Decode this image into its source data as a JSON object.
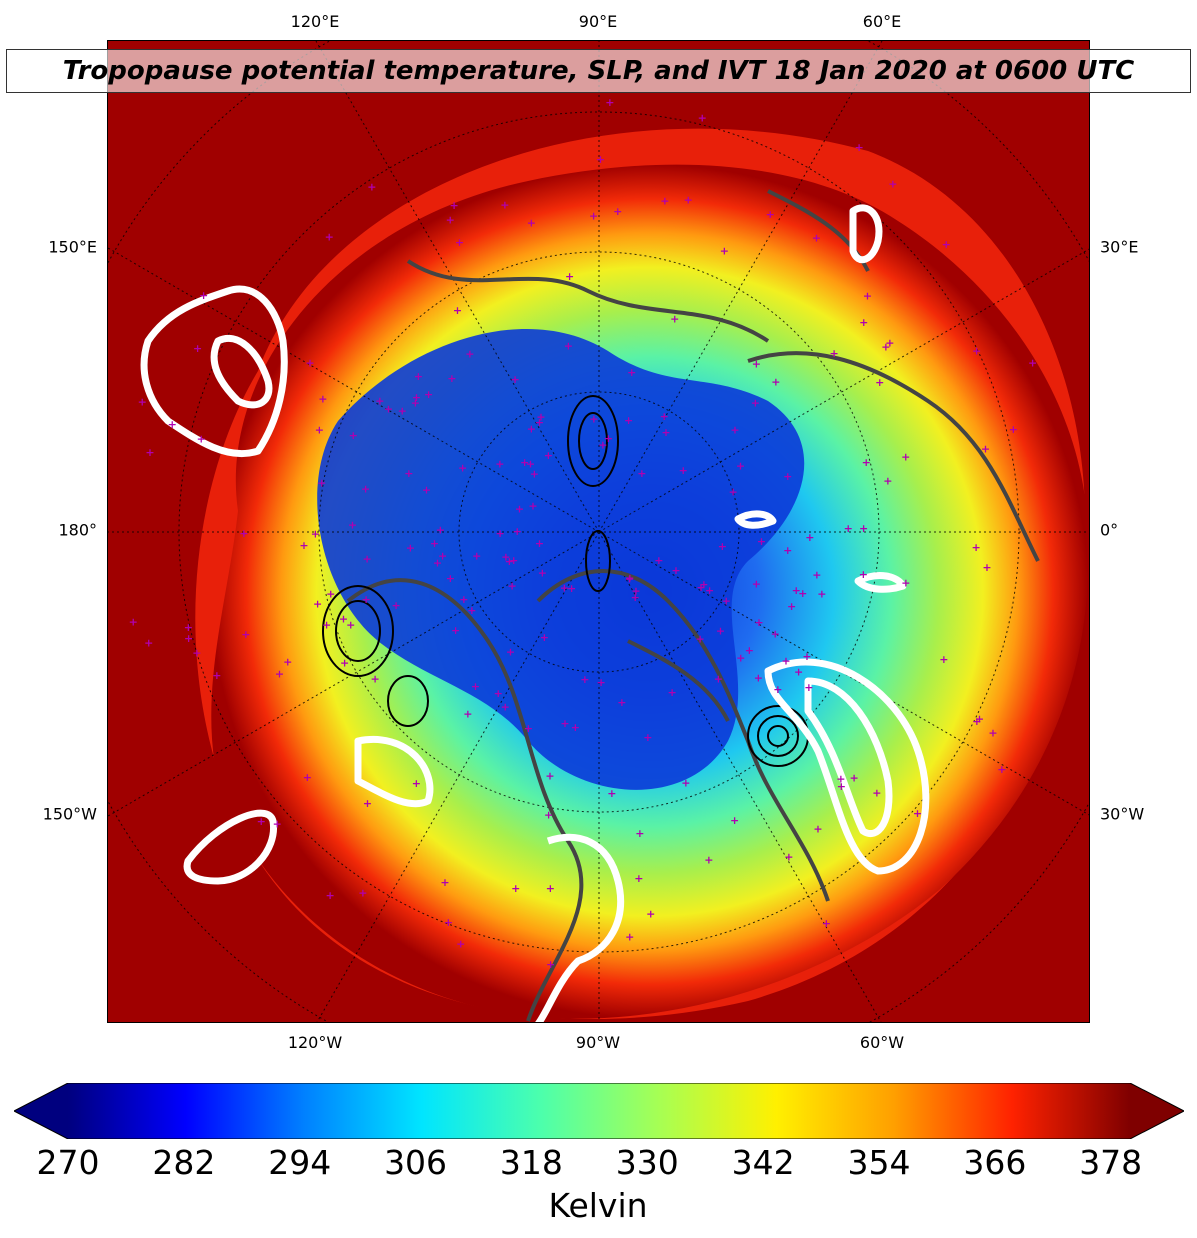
{
  "title": "Tropopause potential temperature, SLP, and IVT 18 Jan 2020 at 0600 UTC",
  "map": {
    "background_color": "#a00000",
    "coastline_color": "#444444",
    "ivt_contour_color": "#ffffff",
    "slp_contour_color": "#000000",
    "marker_color": "#b000b0",
    "longitude_labels_top": [
      "120°E",
      "90°E",
      "60°E"
    ],
    "longitude_labels_bottom": [
      "120°W",
      "90°W",
      "60°W"
    ],
    "longitude_labels_left": [
      "150°E",
      "180°",
      "150°W"
    ],
    "longitude_labels_right": [
      "30°E",
      "0°",
      "30°W"
    ]
  },
  "colorbar": {
    "label": "Kelvin",
    "ticks": [
      "270",
      "282",
      "294",
      "306",
      "318",
      "330",
      "342",
      "354",
      "366",
      "378"
    ],
    "min": 270,
    "max": 380,
    "extend": "both",
    "colormap": [
      "#00007f",
      "#0000ff",
      "#0080ff",
      "#00e5ff",
      "#4bffad",
      "#a6ff54",
      "#fff000",
      "#ff9f00",
      "#ff2200",
      "#7f0000"
    ]
  }
}
